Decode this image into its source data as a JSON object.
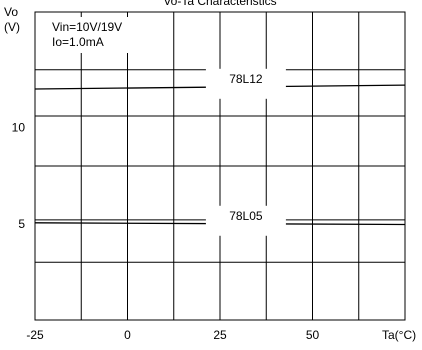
{
  "chart_data": {
    "type": "line",
    "title": "Vo-Ta Characteristics",
    "ylabel": "Vo",
    "yunit": "(V)",
    "xlabel": "Ta(°C)",
    "conditions": [
      "Vin=10V/19V",
      "Io=1.0mA"
    ],
    "xlim": [
      -25,
      75
    ],
    "ylim": [
      0,
      16
    ],
    "xticks": [
      -25,
      0,
      25,
      50
    ],
    "yticks": [
      5,
      10
    ],
    "x_gridlines": [
      -25,
      -12.5,
      0,
      12.5,
      25,
      37.5,
      50,
      62.5,
      75
    ],
    "y_gridlines": [
      0,
      3,
      5.2,
      8,
      10.6,
      13,
      16
    ],
    "grid": true,
    "series": [
      {
        "name": "78L12",
        "x": [
          -25,
          75
        ],
        "y": [
          12.0,
          12.2
        ]
      },
      {
        "name": "78L05",
        "x": [
          -25,
          75
        ],
        "y": [
          5.05,
          4.96
        ]
      }
    ]
  }
}
